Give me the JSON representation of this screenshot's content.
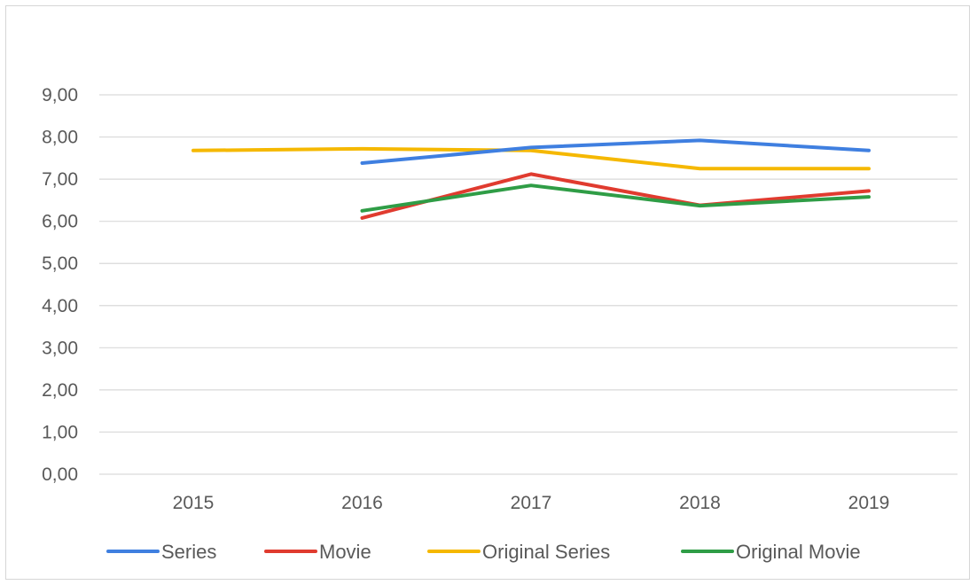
{
  "chart_data": {
    "type": "line",
    "title": "",
    "xlabel": "",
    "ylabel": "",
    "x": [
      "2015",
      "2016",
      "2017",
      "2018",
      "2019"
    ],
    "ylim": [
      0,
      9
    ],
    "yticks": [
      "0,00",
      "1,00",
      "2,00",
      "3,00",
      "4,00",
      "5,00",
      "6,00",
      "7,00",
      "8,00",
      "9,00"
    ],
    "grid": true,
    "legend_position": "bottom",
    "series": [
      {
        "name": "Series",
        "color": "#3f7fe0",
        "values": [
          null,
          7.38,
          7.75,
          7.92,
          7.68
        ]
      },
      {
        "name": "Movie",
        "color": "#e03b2f",
        "values": [
          null,
          6.08,
          7.12,
          6.38,
          6.72
        ]
      },
      {
        "name": "Original Series",
        "color": "#f5b800",
        "values": [
          7.68,
          7.72,
          7.68,
          7.25,
          7.25
        ]
      },
      {
        "name": "Original Movie",
        "color": "#2f9d46",
        "values": [
          null,
          6.25,
          6.85,
          6.37,
          6.58
        ]
      }
    ]
  }
}
